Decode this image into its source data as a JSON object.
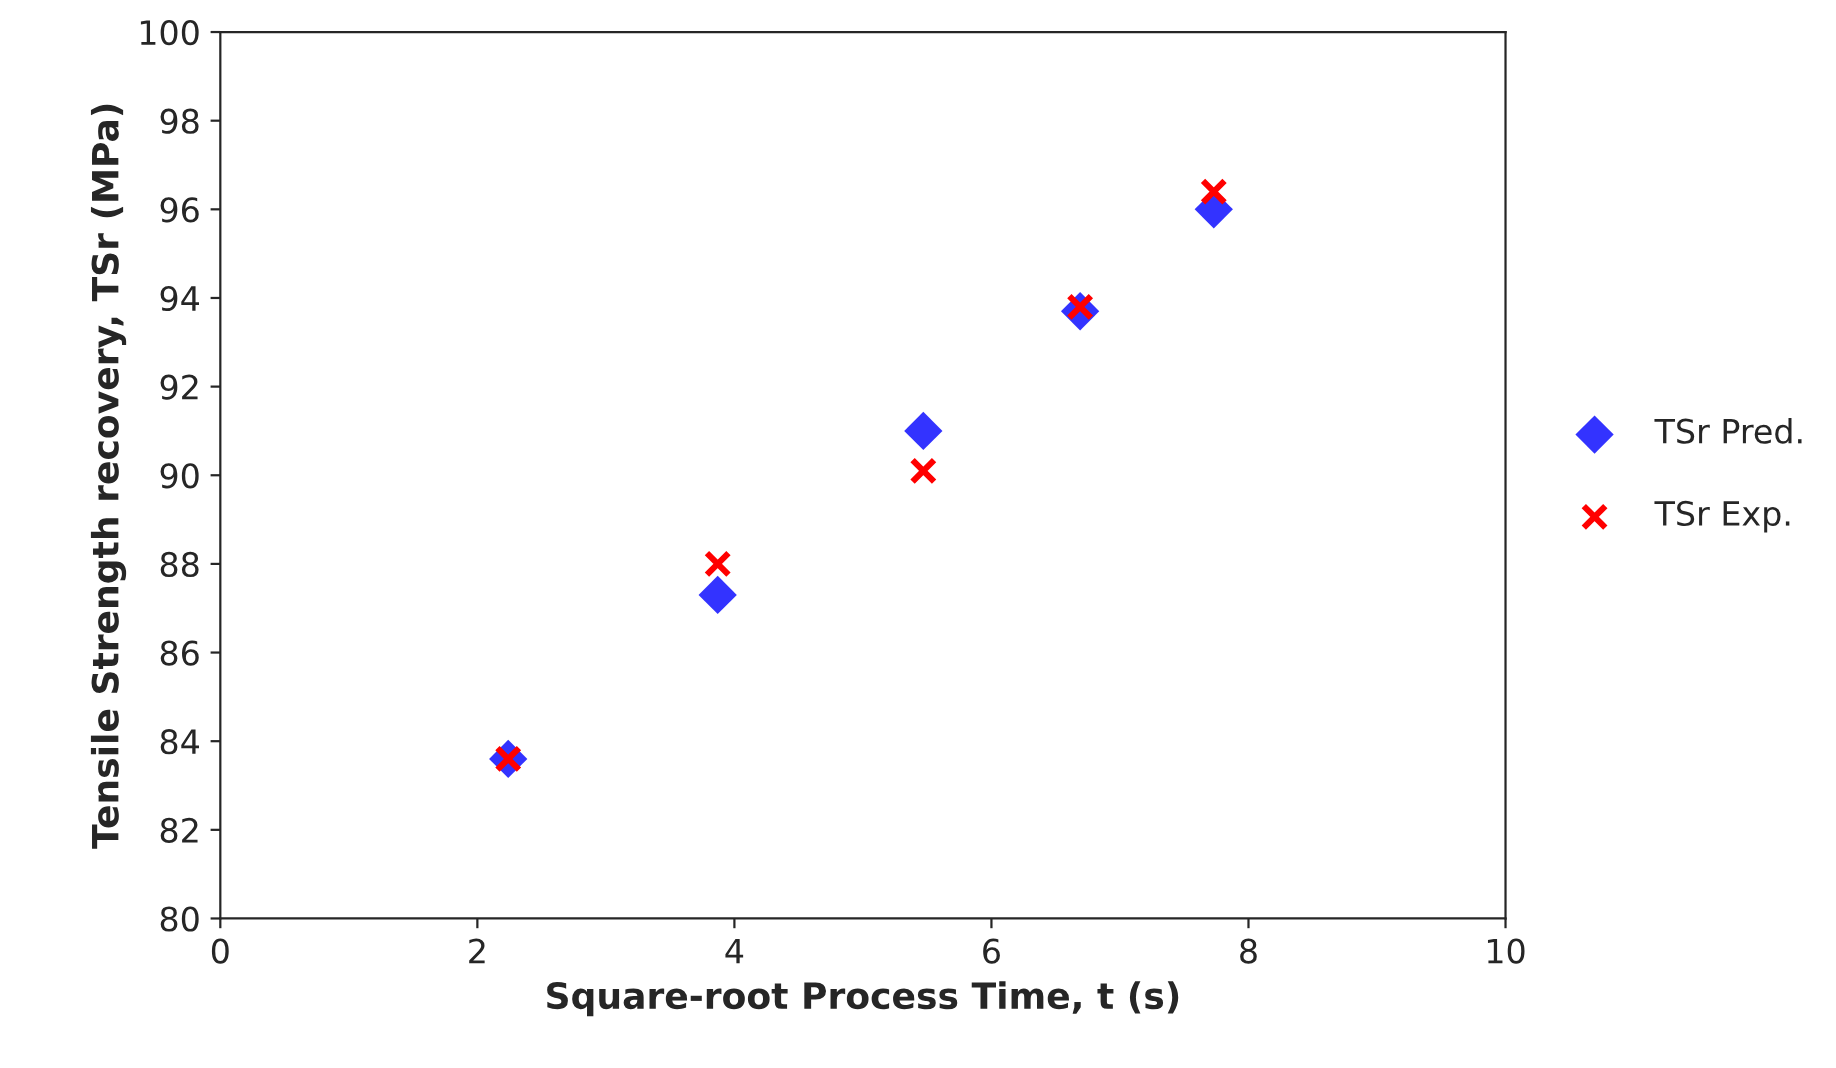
{
  "chart_data": {
    "type": "scatter",
    "xlabel": "Square-root Process Time, t (s)",
    "ylabel": "Tensile Strength recovery, TSr (MPa)",
    "x": [
      2.24,
      3.87,
      5.47,
      6.69,
      7.73
    ],
    "series": [
      {
        "name": "TSr Pred.",
        "color": "#3333ff",
        "marker": "diamond",
        "values": [
          83.6,
          87.3,
          91.0,
          93.7,
          96.0
        ]
      },
      {
        "name": "TSr Exp.",
        "color": "#ff0000",
        "marker": "cross",
        "values": [
          83.6,
          88.0,
          90.1,
          93.8,
          96.4
        ]
      }
    ],
    "xlim": [
      0,
      10
    ],
    "xticks": [
      0,
      2,
      4,
      6,
      8,
      10
    ],
    "ylim": [
      80,
      100
    ],
    "yticks": [
      80,
      82,
      84,
      86,
      88,
      90,
      92,
      94,
      96,
      98,
      100
    ],
    "grid": false,
    "legend": "right"
  }
}
